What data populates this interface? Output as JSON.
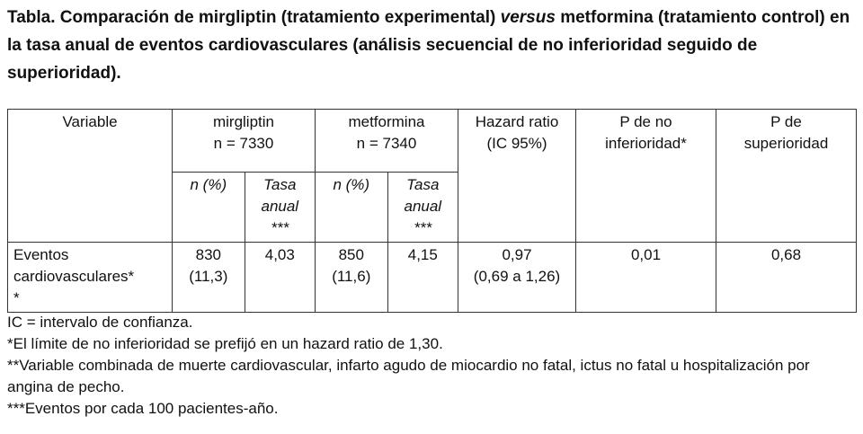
{
  "title": {
    "part1": "Tabla. Comparación de mirgliptin (tratamiento experimental) ",
    "part2": "versus",
    "part3": " metformina (tratamiento control) en la tasa anual de eventos cardiovasculares (análisis secuencial de no inferioridad seguido de superioridad)."
  },
  "table": {
    "headers": {
      "variable": "Variable",
      "mirgliptin": {
        "name": "mirgliptin",
        "n": "n = 7330"
      },
      "metformina": {
        "name": "metformina",
        "n": "n = 7340"
      },
      "hazard_ratio": {
        "line1": "Hazard ratio",
        "line2": "(IC 95%)"
      },
      "p_no_inferioridad": {
        "line1": "P de no",
        "line2": "inferioridad*"
      },
      "p_superioridad": {
        "line1": "P de",
        "line2": "superioridad"
      },
      "sub_n": "n (%)",
      "sub_tasa": {
        "line1": "Tasa",
        "line2": "anual",
        "line3": "***"
      }
    },
    "row": {
      "variable": {
        "line1": "Eventos",
        "line2": "cardiovasculares*",
        "line3": "*"
      },
      "mirgliptin_n": {
        "line1": "830",
        "line2": "(11,3)"
      },
      "mirgliptin_tasa": "4,03",
      "metformina_n": {
        "line1": "850",
        "line2": "(11,6)"
      },
      "metformina_tasa": "4,15",
      "hazard_ratio": {
        "line1": "0,97",
        "line2": "(0,69 a 1,26)"
      },
      "p_no_inferioridad": "0,01",
      "p_superioridad": "0,68"
    }
  },
  "notes": [
    "IC = intervalo de confianza.",
    "*El límite de no inferioridad se prefijó en un hazard ratio de 1,30.",
    "**Variable combinada de muerte cardiovascular, infarto agudo de miocardio no fatal, ictus no fatal u hospitalización por angina de pecho.",
    "***Eventos por cada 100 pacientes-año."
  ]
}
